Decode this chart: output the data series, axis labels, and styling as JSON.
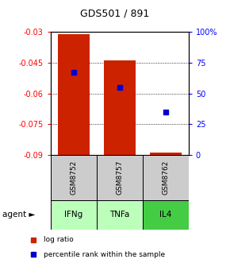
{
  "title": "GDS501 / 891",
  "samples": [
    "GSM8752",
    "GSM8757",
    "GSM8762"
  ],
  "agents": [
    "IFNg",
    "TNFa",
    "IL4"
  ],
  "bar_tops": [
    -0.031,
    -0.044,
    -0.089
  ],
  "bar_bottom": -0.09,
  "blue_percentile": [
    67,
    55,
    35
  ],
  "ylim_left": [
    -0.09,
    -0.03
  ],
  "ylim_right": [
    0,
    100
  ],
  "yticks_left": [
    -0.09,
    -0.075,
    -0.06,
    -0.045,
    -0.03
  ],
  "yticks_right": [
    0,
    25,
    50,
    75,
    100
  ],
  "ytick_labels_left": [
    "-0.09",
    "-0.075",
    "-0.06",
    "-0.045",
    "-0.03"
  ],
  "ytick_labels_right": [
    "0",
    "25",
    "50",
    "75",
    "100%"
  ],
  "bar_color": "#cc2200",
  "blue_color": "#0000cc",
  "agent_colors": [
    "#bbffbb",
    "#bbffbb",
    "#44cc44"
  ],
  "sample_bg_color": "#cccccc",
  "legend_bar_label": "log ratio",
  "legend_blue_label": "percentile rank within the sample",
  "bar_width": 0.7,
  "agent_label": "agent"
}
